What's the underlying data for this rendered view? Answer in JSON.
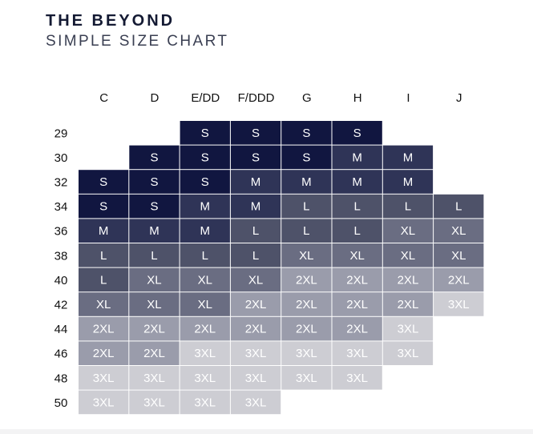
{
  "header": {
    "title": "THE BEYOND",
    "subtitle": "SIMPLE SIZE CHART"
  },
  "colors": {
    "S": "#111640",
    "M": "#2f3457",
    "L": "#4e5269",
    "XL": "#6a6d82",
    "2XL": "#9a9cab",
    "3XL": "#cdcdd3",
    "label_dark_bg": "#ffffff",
    "label_light_bg": "#ffffff"
  },
  "chart_data": {
    "type": "table",
    "columns": [
      "C",
      "D",
      "E/DD",
      "F/DDD",
      "G",
      "H",
      "I",
      "J"
    ],
    "rows": [
      "29",
      "30",
      "32",
      "34",
      "36",
      "38",
      "40",
      "42",
      "44",
      "46",
      "48",
      "50"
    ],
    "cells": [
      [
        "",
        "",
        "S",
        "S",
        "S",
        "S",
        "",
        ""
      ],
      [
        "",
        "S",
        "S",
        "S",
        "S",
        "M",
        "M",
        ""
      ],
      [
        "S",
        "S",
        "S",
        "M",
        "M",
        "M",
        "M",
        ""
      ],
      [
        "S",
        "S",
        "M",
        "M",
        "L",
        "L",
        "L",
        "L"
      ],
      [
        "M",
        "M",
        "M",
        "L",
        "L",
        "L",
        "XL",
        "XL"
      ],
      [
        "L",
        "L",
        "L",
        "L",
        "XL",
        "XL",
        "XL",
        "XL"
      ],
      [
        "L",
        "XL",
        "XL",
        "XL",
        "2XL",
        "2XL",
        "2XL",
        "2XL"
      ],
      [
        "XL",
        "XL",
        "XL",
        "2XL",
        "2XL",
        "2XL",
        "2XL",
        "3XL"
      ],
      [
        "2XL",
        "2XL",
        "2XL",
        "2XL",
        "2XL",
        "2XL",
        "3XL",
        ""
      ],
      [
        "2XL",
        "2XL",
        "3XL",
        "3XL",
        "3XL",
        "3XL",
        "3XL",
        ""
      ],
      [
        "3XL",
        "3XL",
        "3XL",
        "3XL",
        "3XL",
        "3XL",
        "",
        ""
      ],
      [
        "3XL",
        "3XL",
        "3XL",
        "3XL",
        "",
        "",
        "",
        ""
      ]
    ]
  }
}
